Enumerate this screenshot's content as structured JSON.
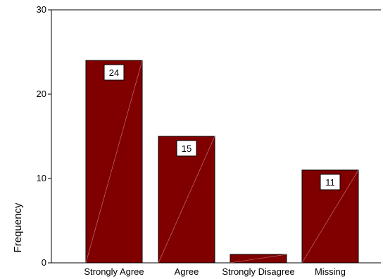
{
  "chart_data": {
    "type": "bar",
    "title": "",
    "xlabel": "",
    "ylabel": "Frequency",
    "categories": [
      "Strongly Agree",
      "Agree",
      "Strongly Disagree",
      "Missing"
    ],
    "values": [
      24,
      15,
      1,
      11
    ],
    "data_labels": [
      "24",
      "15",
      "",
      "11"
    ],
    "ylim": [
      0,
      30
    ],
    "yticks": [
      0,
      10,
      20,
      30
    ],
    "grid": false,
    "legend": "none",
    "colors": {
      "bar_fill": "#800000",
      "bar_stroke": "#000000",
      "label_box": "#ffffff"
    }
  }
}
